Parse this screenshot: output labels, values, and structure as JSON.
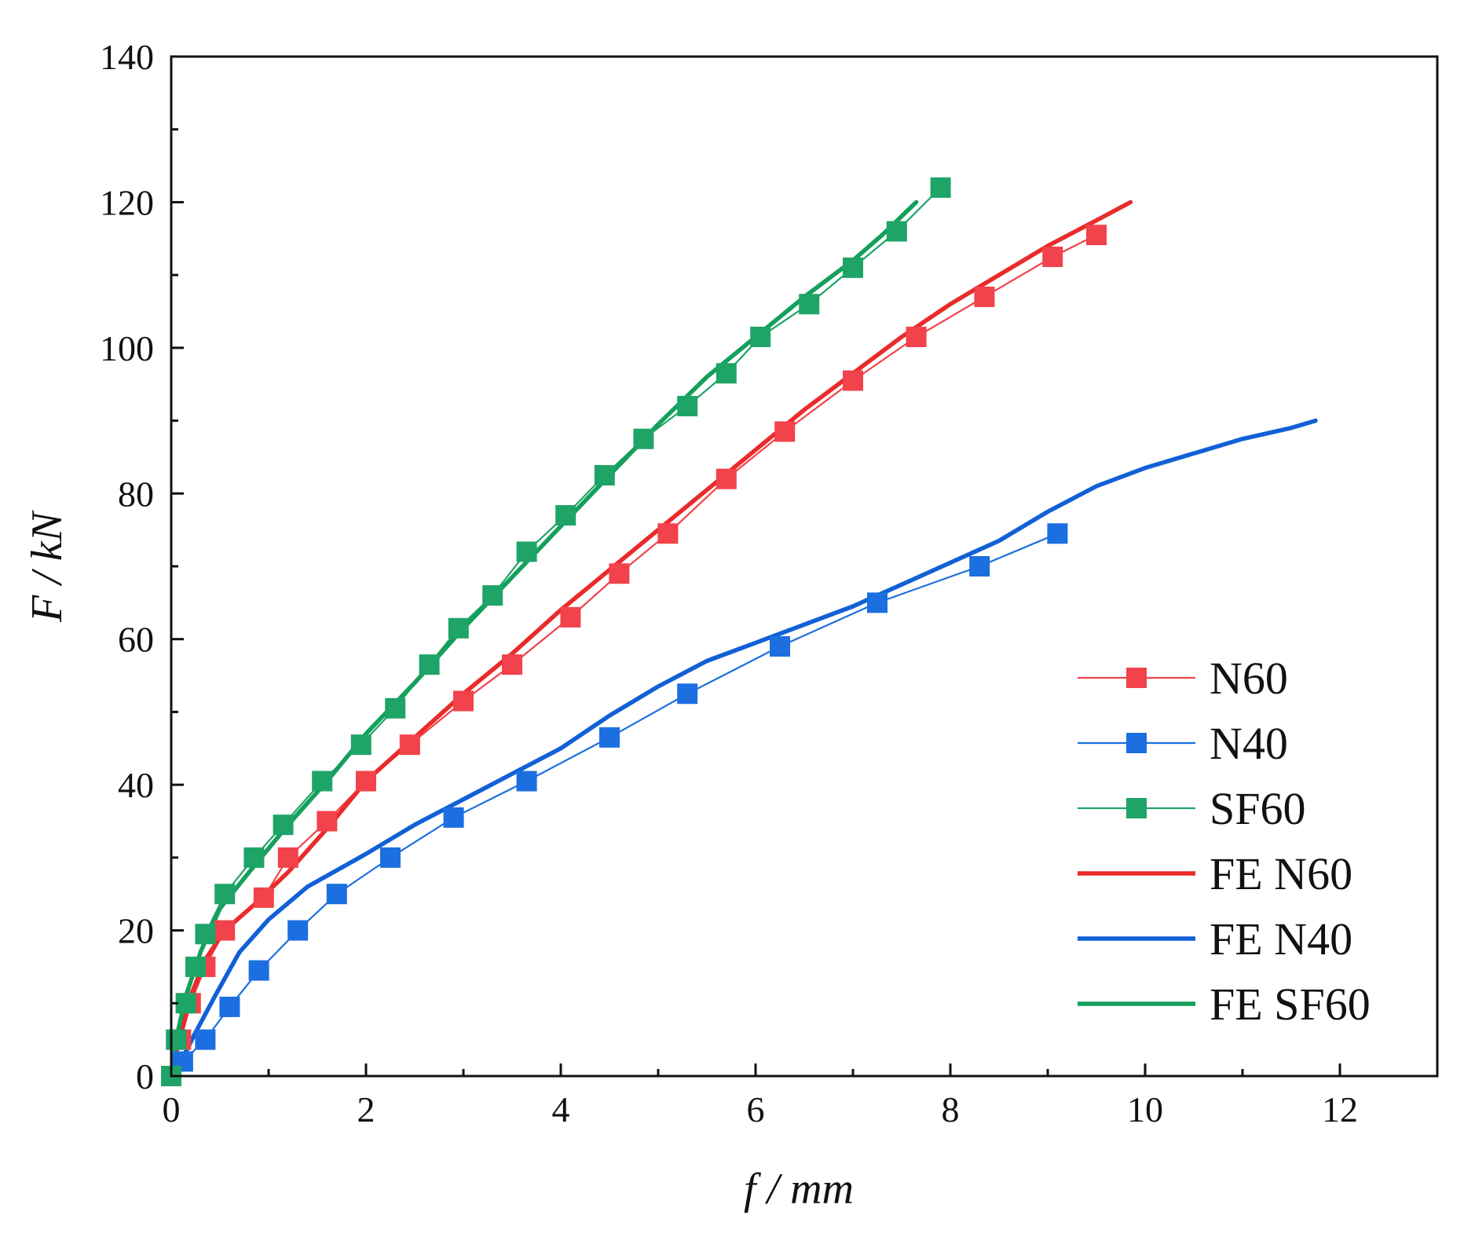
{
  "chart_data": {
    "type": "line",
    "xlabel": "f / mm",
    "ylabel": "F / kN",
    "xlim": [
      0,
      13
    ],
    "ylim": [
      0,
      140
    ],
    "xticks": [
      0,
      2,
      4,
      6,
      8,
      10,
      12
    ],
    "yticks": [
      0,
      20,
      40,
      60,
      80,
      100,
      120,
      140
    ],
    "grid": false,
    "legend_position": "lower-right",
    "series": [
      {
        "name": "N60",
        "kind": "markers",
        "color": "#f2424b",
        "points": [
          [
            0,
            0
          ],
          [
            0.1,
            5
          ],
          [
            0.2,
            10
          ],
          [
            0.35,
            15
          ],
          [
            0.55,
            20
          ],
          [
            0.95,
            24.5
          ],
          [
            1.2,
            30
          ],
          [
            1.6,
            35
          ],
          [
            2.0,
            40.5
          ],
          [
            2.45,
            45.5
          ],
          [
            3.0,
            51.5
          ],
          [
            3.5,
            56.5
          ],
          [
            4.1,
            63
          ],
          [
            4.6,
            69
          ],
          [
            5.1,
            74.5
          ],
          [
            5.7,
            82
          ],
          [
            6.3,
            88.5
          ],
          [
            7.0,
            95.5
          ],
          [
            7.65,
            101.5
          ],
          [
            8.35,
            107
          ],
          [
            9.05,
            112.5
          ],
          [
            9.5,
            115.5
          ]
        ]
      },
      {
        "name": "N40",
        "kind": "markers",
        "color": "#1c6fe0",
        "points": [
          [
            0,
            0
          ],
          [
            0.12,
            2
          ],
          [
            0.35,
            5
          ],
          [
            0.6,
            9.5
          ],
          [
            0.9,
            14.5
          ],
          [
            1.3,
            20
          ],
          [
            1.7,
            25
          ],
          [
            2.25,
            30
          ],
          [
            2.9,
            35.5
          ],
          [
            3.65,
            40.5
          ],
          [
            4.5,
            46.5
          ],
          [
            5.3,
            52.5
          ],
          [
            6.25,
            59
          ],
          [
            7.25,
            65
          ],
          [
            8.3,
            70
          ],
          [
            9.1,
            74.5
          ]
        ]
      },
      {
        "name": "SF60",
        "kind": "markers",
        "color": "#1fa468",
        "points": [
          [
            0,
            0
          ],
          [
            0.05,
            5
          ],
          [
            0.15,
            10
          ],
          [
            0.25,
            15
          ],
          [
            0.35,
            19.5
          ],
          [
            0.55,
            25
          ],
          [
            0.85,
            30
          ],
          [
            1.15,
            34.5
          ],
          [
            1.55,
            40.5
          ],
          [
            1.95,
            45.5
          ],
          [
            2.3,
            50.5
          ],
          [
            2.65,
            56.5
          ],
          [
            2.95,
            61.5
          ],
          [
            3.3,
            66
          ],
          [
            3.65,
            72
          ],
          [
            4.05,
            77
          ],
          [
            4.45,
            82.5
          ],
          [
            4.85,
            87.5
          ],
          [
            5.3,
            92
          ],
          [
            5.7,
            96.5
          ],
          [
            6.05,
            101.5
          ],
          [
            6.55,
            106
          ],
          [
            7.0,
            111
          ],
          [
            7.45,
            116
          ],
          [
            7.9,
            122
          ]
        ]
      },
      {
        "name": "FE N60",
        "kind": "line",
        "color": "#ea2b2b",
        "points": [
          [
            0,
            0
          ],
          [
            0.08,
            5
          ],
          [
            0.2,
            11
          ],
          [
            0.35,
            16
          ],
          [
            0.55,
            20
          ],
          [
            0.85,
            23.5
          ],
          [
            1.2,
            28
          ],
          [
            1.6,
            34
          ],
          [
            2.0,
            40.5
          ],
          [
            2.5,
            46.5
          ],
          [
            3.0,
            52.5
          ],
          [
            3.5,
            58
          ],
          [
            4.0,
            64
          ],
          [
            4.5,
            69.5
          ],
          [
            5.0,
            75
          ],
          [
            5.5,
            80.5
          ],
          [
            6.0,
            86
          ],
          [
            6.5,
            91.5
          ],
          [
            7.0,
            96.5
          ],
          [
            7.5,
            101.5
          ],
          [
            8.0,
            106
          ],
          [
            8.5,
            110
          ],
          [
            9.0,
            114
          ],
          [
            9.5,
            117.5
          ],
          [
            9.85,
            120
          ]
        ]
      },
      {
        "name": "FE N40",
        "kind": "line",
        "color": "#1160d6",
        "points": [
          [
            0,
            0
          ],
          [
            0.1,
            2
          ],
          [
            0.25,
            6
          ],
          [
            0.45,
            11
          ],
          [
            0.7,
            17
          ],
          [
            1.0,
            21.5
          ],
          [
            1.4,
            26
          ],
          [
            2.0,
            30.5
          ],
          [
            2.5,
            34.5
          ],
          [
            3.0,
            38
          ],
          [
            3.5,
            41.5
          ],
          [
            4.0,
            45
          ],
          [
            4.5,
            49.5
          ],
          [
            5.0,
            53.5
          ],
          [
            5.5,
            57
          ],
          [
            6.0,
            59.5
          ],
          [
            6.5,
            62
          ],
          [
            7.0,
            64.5
          ],
          [
            7.5,
            67.5
          ],
          [
            8.0,
            70.5
          ],
          [
            8.5,
            73.5
          ],
          [
            9.0,
            77.5
          ],
          [
            9.5,
            81
          ],
          [
            10.0,
            83.5
          ],
          [
            10.5,
            85.5
          ],
          [
            11.0,
            87.5
          ],
          [
            11.5,
            89
          ],
          [
            11.75,
            90
          ]
        ]
      },
      {
        "name": "FE SF60",
        "kind": "line",
        "color": "#14a05c",
        "points": [
          [
            0,
            0
          ],
          [
            0.05,
            5
          ],
          [
            0.15,
            11
          ],
          [
            0.3,
            17
          ],
          [
            0.5,
            23
          ],
          [
            0.8,
            28
          ],
          [
            1.2,
            34.5
          ],
          [
            1.6,
            40.5
          ],
          [
            2.0,
            47
          ],
          [
            2.5,
            54
          ],
          [
            3.0,
            61.5
          ],
          [
            3.5,
            68.5
          ],
          [
            4.0,
            75.5
          ],
          [
            4.5,
            82.5
          ],
          [
            5.0,
            89.5
          ],
          [
            5.5,
            96
          ],
          [
            6.0,
            101.5
          ],
          [
            6.5,
            107
          ],
          [
            7.0,
            112
          ],
          [
            7.3,
            115.5
          ],
          [
            7.65,
            120
          ]
        ]
      }
    ]
  }
}
